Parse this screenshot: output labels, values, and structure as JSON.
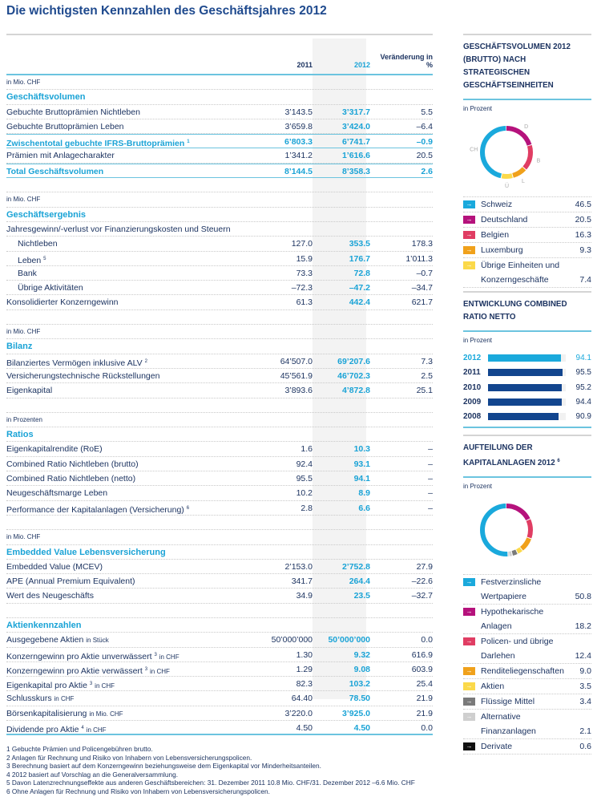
{
  "title": "Die wichtigsten Kennzahlen des Geschäftsjahres 2012",
  "table": {
    "headers": {
      "y2011": "2011",
      "y2012": "2012",
      "change": "Veränderung in %"
    },
    "rows": [
      {
        "t": "unit",
        "l": "in Mio. CHF"
      },
      {
        "t": "section",
        "l": "Geschäftsvolumen"
      },
      {
        "t": "row",
        "l": "Gebuchte Bruttoprämien Nichtleben",
        "a": "3’143.5",
        "b": "3’317.7",
        "c": "5.5"
      },
      {
        "t": "row",
        "l": "Gebuchte Bruttoprämien Leben",
        "a": "3’659.8",
        "b": "3’424.0",
        "c": "–6.4"
      },
      {
        "t": "sub",
        "l": "Zwischentotal gebuchte IFRS-Bruttoprämien",
        "s": "1",
        "a": "6’803.3",
        "b": "6’741.7",
        "c": "–0.9"
      },
      {
        "t": "row",
        "l": "Prämien mit Anlagecharakter",
        "a": "1’341.2",
        "b": "1’616.6",
        "c": "20.5"
      },
      {
        "t": "sub",
        "l": "Total Geschäftsvolumen",
        "a": "8’144.5",
        "b": "8’358.3",
        "c": "2.6"
      },
      {
        "t": "spacer"
      },
      {
        "t": "unit",
        "l": "in Mio. CHF"
      },
      {
        "t": "section",
        "l": "Geschäftsergebnis"
      },
      {
        "t": "row",
        "l": "Jahresgewinn/-verlust vor Finanzierungskosten und Steuern"
      },
      {
        "t": "indent",
        "l": "Nichtleben",
        "a": "127.0",
        "b": "353.5",
        "c": "178.3"
      },
      {
        "t": "indent",
        "l": "Leben",
        "s": "5",
        "a": "15.9",
        "b": "176.7",
        "c": "1’011.3"
      },
      {
        "t": "indent",
        "l": "Bank",
        "a": "73.3",
        "b": "72.8",
        "c": "–0.7"
      },
      {
        "t": "indent",
        "l": "Übrige Aktivitäten",
        "a": "–72.3",
        "b": "–47.2",
        "c": "–34.7"
      },
      {
        "t": "row",
        "l": "Konsolidierter Konzerngewinn",
        "a": "61.3",
        "b": "442.4",
        "c": "621.7"
      },
      {
        "t": "spacer"
      },
      {
        "t": "unit",
        "l": "in Mio. CHF"
      },
      {
        "t": "section",
        "l": "Bilanz"
      },
      {
        "t": "row",
        "l": "Bilanziertes Vermögen inklusive ALV",
        "s": "2",
        "a": "64’507.0",
        "b": "69’207.6",
        "c": "7.3"
      },
      {
        "t": "row",
        "l": "Versicherungstechnische Rückstellungen",
        "a": "45’561.9",
        "b": "46’702.3",
        "c": "2.5"
      },
      {
        "t": "row",
        "l": "Eigenkapital",
        "a": "3’893.6",
        "b": "4’872.8",
        "c": "25.1"
      },
      {
        "t": "spacer"
      },
      {
        "t": "unit",
        "l": "in Prozenten"
      },
      {
        "t": "section",
        "l": "Ratios"
      },
      {
        "t": "row",
        "l": "Eigenkapitalrendite (RoE)",
        "a": "1.6",
        "b": "10.3",
        "c": "–"
      },
      {
        "t": "row",
        "l": "Combined Ratio Nichtleben (brutto)",
        "a": "92.4",
        "b": "93.1",
        "c": "–"
      },
      {
        "t": "row",
        "l": "Combined Ratio Nichtleben (netto)",
        "a": "95.5",
        "b": "94.1",
        "c": "–"
      },
      {
        "t": "row",
        "l": "Neugeschäftsmarge Leben",
        "a": "10.2",
        "b": "8.9",
        "c": "–"
      },
      {
        "t": "row",
        "l": "Performance der Kapitalanlagen (Versicherung)",
        "s": "6",
        "a": "2.8",
        "b": "6.6",
        "c": "–"
      },
      {
        "t": "spacer"
      },
      {
        "t": "unit",
        "l": "in Mio. CHF"
      },
      {
        "t": "section",
        "l": "Embedded Value Lebensversicherung"
      },
      {
        "t": "row",
        "l": "Embedded Value (MCEV)",
        "a": "2’153.0",
        "b": "2’752.8",
        "c": "27.9"
      },
      {
        "t": "row",
        "l": "APE (Annual Premium Equivalent)",
        "a": "341.7",
        "b": "264.4",
        "c": "–22.6"
      },
      {
        "t": "row",
        "l": "Wert des Neugeschäfts",
        "a": "34.9",
        "b": "23.5",
        "c": "–32.7"
      },
      {
        "t": "spacer"
      },
      {
        "t": "section",
        "l": "Aktienkennzahlen"
      },
      {
        "t": "row",
        "l": "Ausgegebene Aktien",
        "u": "in Stück",
        "a": "50’000’000",
        "b": "50’000’000",
        "c": "0.0"
      },
      {
        "t": "row",
        "l": "Konzerngewinn pro Aktie unverwässert",
        "s": "3",
        "u": "in CHF",
        "a": "1.30",
        "b": "9.32",
        "c": "616.9"
      },
      {
        "t": "row",
        "l": "Konzerngewinn pro Aktie verwässert",
        "s": "3",
        "u": "in CHF",
        "a": "1.29",
        "b": "9.08",
        "c": "603.9"
      },
      {
        "t": "row",
        "l": "Eigenkapital pro Aktie",
        "s": "3",
        "u": "in CHF",
        "a": "82.3",
        "b": "103.2",
        "c": "25.4"
      },
      {
        "t": "row",
        "l": "Schlusskurs",
        "u": "in CHF",
        "a": "64.40",
        "b": "78.50",
        "c": "21.9"
      },
      {
        "t": "row",
        "l": "Börsenkapitalisierung",
        "u": "in Mio. CHF",
        "a": "3’220.0",
        "b": "3’925.0",
        "c": "21.9"
      },
      {
        "t": "row",
        "l": "Dividende pro Aktie",
        "s": "4",
        "u": "in CHF",
        "a": "4.50",
        "b": "4.50",
        "c": "0.0"
      }
    ]
  },
  "footnotes": [
    "1 Gebuchte Prämien und Policengebühren brutto.",
    "2 Anlagen für Rechnung und Risiko von Inhabern von Lebensversicherungspolicen.",
    "3 Berechnung basiert auf dem Konzerngewinn beziehungsweise dem Eigenkapital vor Minderheitsanteilen.",
    "4 2012 basiert auf Vorschlag an die Generalversammlung.",
    "5 Davon Latenzrechnungseffekte aus anderen Geschäftsbereichen: 31. Dezember 2011 10.8 Mio. CHF/31. Dezember 2012 –6.6 Mio. CHF",
    "6 Ohne Anlagen für Rechnung und Risiko von Inhabern von Lebensversicherungspolicen."
  ],
  "side": {
    "volume": {
      "title": "GESCHÄFTSVOLUMEN 2012 (BRUTTO) NACH STRATEGISCHEN GESCHÄFTSEINHEITEN",
      "unit": "in Prozent",
      "labels": [
        "D",
        "B",
        "L",
        "Ü",
        "CH"
      ],
      "items": [
        {
          "label": "Schweiz",
          "value": 46.5,
          "color": "#1aa9dc",
          "short": "CH"
        },
        {
          "label": "Deutschland",
          "value": 20.5,
          "color": "#b5127c",
          "short": "D"
        },
        {
          "label": "Belgien",
          "value": 16.3,
          "color": "#e03d63",
          "short": "B"
        },
        {
          "label": "Luxemburg",
          "value": 9.3,
          "color": "#f0a11b",
          "short": "L"
        },
        {
          "label": "Übrige Einheiten und Konzerngeschäfte",
          "value": 7.4,
          "color": "#fbd94a",
          "short": "Ü"
        }
      ]
    },
    "ratio": {
      "title": "ENTWICKLUNG COMBINED RATIO NETTO",
      "unit": "in Prozent",
      "range": [
        0,
        100
      ],
      "items": [
        {
          "year": "2012",
          "value": 94.1,
          "color": "#1aa9dc"
        },
        {
          "year": "2011",
          "value": 95.5,
          "color": "#12458e"
        },
        {
          "year": "2010",
          "value": 95.2,
          "color": "#12458e"
        },
        {
          "year": "2009",
          "value": 94.4,
          "color": "#12458e"
        },
        {
          "year": "2008",
          "value": 90.9,
          "color": "#12458e"
        }
      ]
    },
    "invest": {
      "title": "AUFTEILUNG DER KAPITALANLAGEN 2012",
      "sup": "6",
      "unit": "in Prozent",
      "items": [
        {
          "label": "Festverzinsliche Wertpapiere",
          "value": 50.8,
          "color": "#1aa9dc"
        },
        {
          "label": "Hypothekarische Anlagen",
          "value": 18.2,
          "color": "#b5127c"
        },
        {
          "label": "Policen- und übrige Darlehen",
          "value": 12.4,
          "color": "#e03d63"
        },
        {
          "label": "Renditeliegenschaften",
          "value": 9.0,
          "color": "#f0a11b"
        },
        {
          "label": "Aktien",
          "value": 3.5,
          "color": "#fbd94a"
        },
        {
          "label": "Flüssige Mittel",
          "value": 3.4,
          "color": "#7a7a7a"
        },
        {
          "label": "Alternative Finanzanlagen",
          "value": 2.1,
          "color": "#cfcfcf"
        },
        {
          "label": "Derivate",
          "value": 0.6,
          "color": "#111111"
        }
      ]
    }
  }
}
